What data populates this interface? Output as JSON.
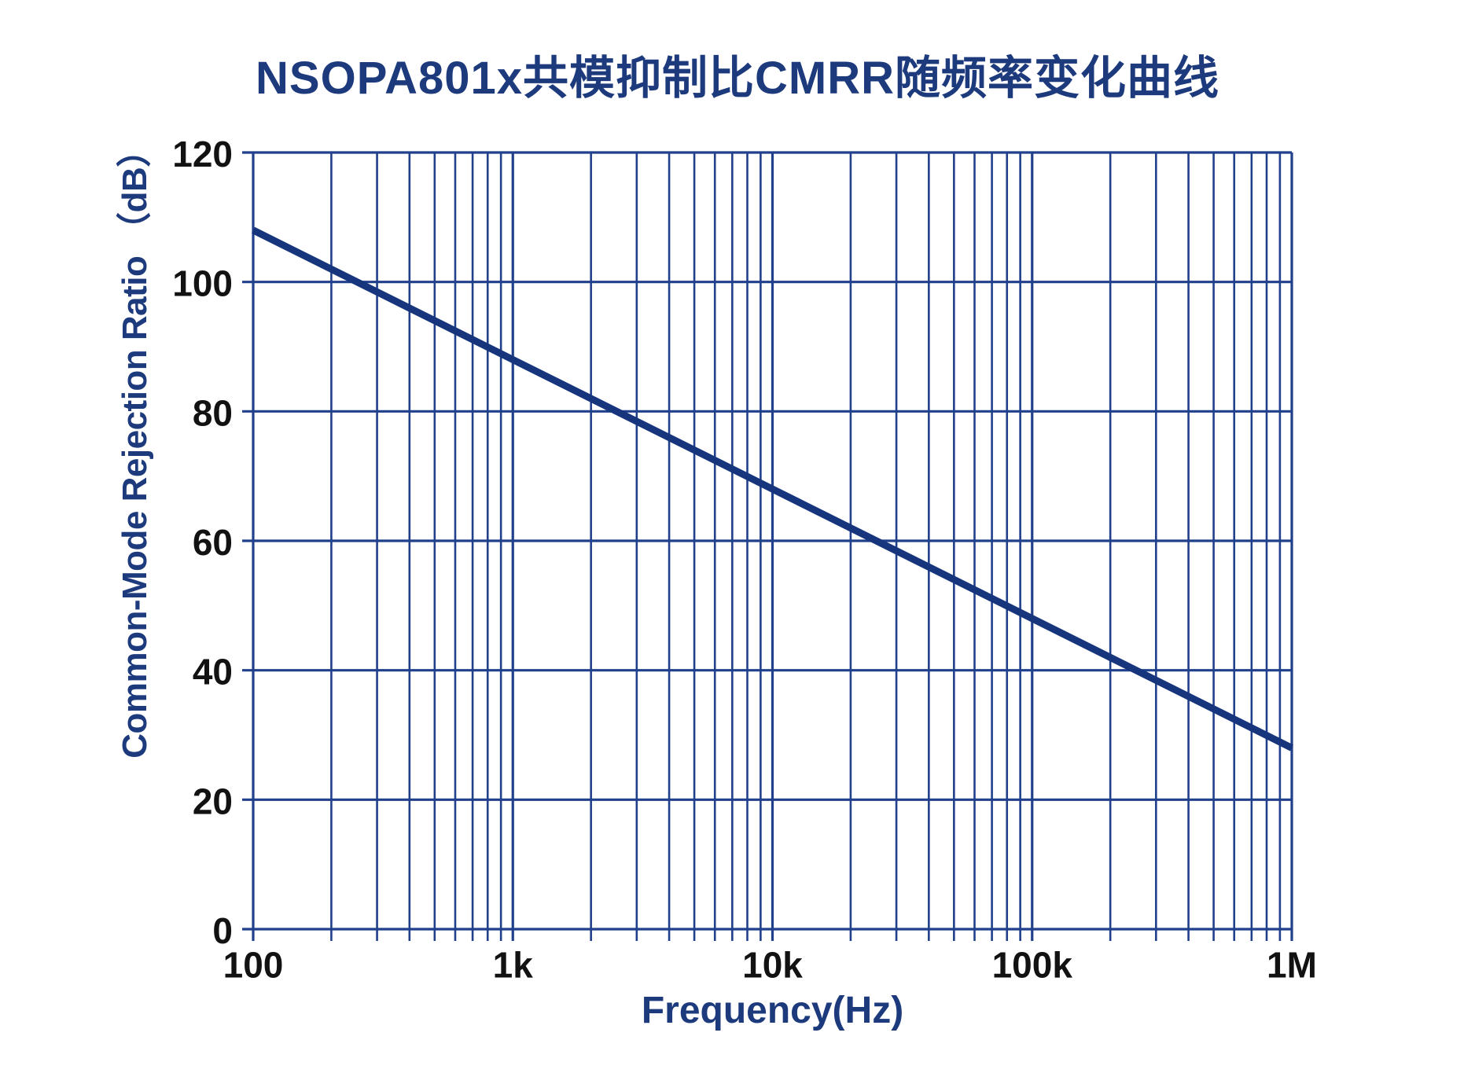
{
  "page": {
    "background": "#ffffff"
  },
  "chart_data": {
    "type": "line",
    "title": "NSOPA801x共模抑制比CMRR随频率变化曲线",
    "xlabel": "Frequency(Hz)",
    "ylabel": "Common-Mode Rejection Ratio （dB）",
    "x_scale": "log10",
    "xlim": [
      100,
      1000000
    ],
    "x_ticks": [
      100,
      1000,
      10000,
      100000,
      1000000
    ],
    "x_tick_labels": [
      "100",
      "1k",
      "10k",
      "100k",
      "1M"
    ],
    "x_minor_multiples": [
      2,
      3,
      4,
      5,
      6,
      7,
      8,
      9
    ],
    "ylim": [
      0,
      120
    ],
    "y_ticks": [
      0,
      20,
      40,
      60,
      80,
      100,
      120
    ],
    "y_tick_labels": [
      "0",
      "20",
      "40",
      "60",
      "80",
      "100",
      "120"
    ],
    "grid": {
      "on": true,
      "horizontal": "major-only",
      "vertical": "major-and-minor-log"
    },
    "legend": "none",
    "series": [
      {
        "name": "CMRR",
        "x": [
          100,
          1000,
          10000,
          100000,
          1000000
        ],
        "values": [
          108,
          88,
          68,
          48,
          28
        ],
        "slope_db_per_decade": -20
      }
    ],
    "colors": {
      "curve": "#16357d",
      "grid": "#21408c",
      "tick_text": "#121212",
      "label_text": "#1d3a7d"
    }
  }
}
